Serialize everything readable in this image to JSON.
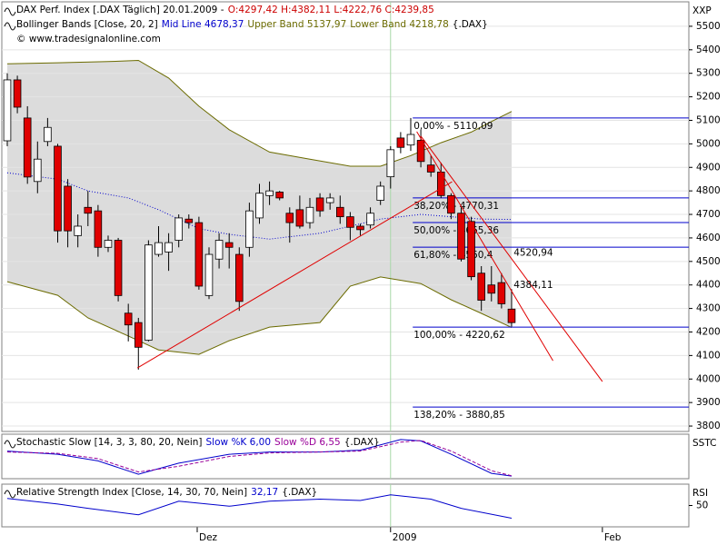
{
  "chart_data": [
    {
      "type": "candlestick",
      "header": [
        [
          {
            "text": "DAX Perf. Index [.DAX Täglich] 20.01.2009 -",
            "color": "#000000"
          },
          {
            "text": "O:4297,42 H:4382,11 L:4222,76 C:4239,85",
            "color": "#cc0000"
          }
        ],
        [
          {
            "text": "Bollinger Bands [Close, 20, 2]",
            "color": "#000000"
          },
          {
            "text": "Mid Line 4678,37",
            "color": "#0000cc"
          },
          {
            "text": "Upper Band 5137,97",
            "color": "#6b6b00"
          },
          {
            "text": "Lower Band 4218,78",
            "color": "#6b6b00"
          },
          {
            "text": "{.DAX}",
            "color": "#000000"
          }
        ],
        [
          {
            "text": "© www.tradesignalonline.com",
            "color": "#000000"
          }
        ]
      ],
      "axis_label": "XXP",
      "x": [
        0,
        1,
        2,
        3,
        4,
        5,
        6,
        7,
        8,
        9,
        10,
        11,
        12,
        13,
        14,
        15,
        16,
        17,
        18,
        19,
        20,
        21,
        22,
        23,
        24,
        25,
        26,
        27,
        28,
        29,
        30,
        31,
        32,
        33,
        34,
        35,
        36,
        37,
        38,
        39,
        40,
        41,
        42,
        43,
        44,
        45,
        46,
        47,
        48,
        49,
        50
      ],
      "open": [
        5013,
        5272,
        5110,
        4840,
        5010,
        4990,
        4820,
        4610,
        4730,
        4715,
        4560,
        4590,
        4280,
        4240,
        4165,
        4530,
        4540,
        4590,
        4680,
        4665,
        4355,
        4510,
        4580,
        4530,
        4560,
        4685,
        4780,
        4795,
        4705,
        4720,
        4665,
        4770,
        4750,
        4730,
        4690,
        4650,
        4655,
        4760,
        4860,
        5025,
        4995,
        5015,
        4910,
        4880,
        4780,
        4705,
        4670,
        4450,
        4400,
        4410,
        4297.42
      ],
      "high": [
        5300,
        5290,
        5160,
        5010,
        5110,
        5000,
        4850,
        4700,
        4800,
        4740,
        4610,
        4600,
        4320,
        4260,
        4590,
        4650,
        4620,
        4700,
        4700,
        4690,
        4560,
        4620,
        4620,
        4560,
        4750,
        4830,
        4840,
        4800,
        4730,
        4780,
        4770,
        4790,
        4790,
        4780,
        4710,
        4660,
        4730,
        4840,
        4990,
        5050,
        5110,
        5060,
        4950,
        4920,
        4790,
        4730,
        4690,
        4480,
        4480,
        4450,
        4382.11
      ],
      "low": [
        4990,
        5130,
        4830,
        4790,
        4990,
        4580,
        4560,
        4560,
        4650,
        4520,
        4540,
        4330,
        4160,
        4040,
        4160,
        4520,
        4460,
        4560,
        4640,
        4380,
        4340,
        4470,
        4470,
        4290,
        4520,
        4660,
        4740,
        4760,
        4580,
        4640,
        4640,
        4690,
        4720,
        4660,
        4590,
        4610,
        4640,
        4740,
        4810,
        4960,
        4970,
        4900,
        4860,
        4770,
        4680,
        4500,
        4420,
        4290,
        4330,
        4300,
        4222.76
      ],
      "close": [
        5272,
        5156,
        4859,
        4935,
        5070,
        4630,
        4630,
        4650,
        4705,
        4560,
        4590,
        4355,
        4230,
        4135,
        4570,
        4580,
        4580,
        4685,
        4665,
        4395,
        4530,
        4590,
        4560,
        4330,
        4715,
        4790,
        4800,
        4770,
        4665,
        4650,
        4730,
        4715,
        4770,
        4690,
        4645,
        4635,
        4705,
        4820,
        4975,
        4985,
        5040,
        4925,
        4880,
        4780,
        4705,
        4510,
        4435,
        4335,
        4365,
        4320,
        4239.85
      ],
      "up_color": "#ffffff",
      "down_color": "#e00000",
      "bands": [
        {
          "name": "Upper Band",
          "color": "#6b6b00",
          "x": [
            0,
            5,
            10,
            13,
            16,
            19,
            22,
            26,
            30,
            34,
            37,
            40,
            43,
            46,
            48,
            50
          ],
          "values": [
            5340,
            5345,
            5350,
            5355,
            5280,
            5160,
            5060,
            4965,
            4935,
            4905,
            4905,
            4950,
            5005,
            5050,
            5095,
            5137.97
          ]
        },
        {
          "name": "Mid Line",
          "color": "#0000cc",
          "x": [
            0,
            5,
            8,
            12,
            15,
            19,
            22,
            26,
            31,
            34,
            37,
            41,
            44,
            47,
            50
          ],
          "values": [
            4877,
            4850,
            4800,
            4770,
            4720,
            4640,
            4615,
            4595,
            4620,
            4650,
            4680,
            4700,
            4690,
            4680,
            4678.37
          ]
        },
        {
          "name": "Lower Band",
          "color": "#6b6b00",
          "x": [
            0,
            5,
            8,
            12,
            15,
            19,
            22,
            26,
            31,
            34,
            37,
            41,
            44,
            47,
            50
          ],
          "values": [
            4414,
            4356,
            4260,
            4183,
            4124,
            4105,
            4163,
            4221,
            4240,
            4395,
            4434,
            4406,
            4337,
            4279,
            4218.78
          ]
        }
      ],
      "band_fill": "#dcdcdc",
      "fib_color": "#0000cc",
      "fib_start_x": 40.2,
      "fib_levels": [
        {
          "value": 5110.09,
          "label": "0,00% - 5110,09"
        },
        {
          "value": 4770.31,
          "label": "38,20% - 4770,31"
        },
        {
          "value": 4665.36,
          "label": "50,00% - 4665,36"
        },
        {
          "value": 4560.4,
          "label": "61,80% - 4560,4"
        },
        {
          "value": 4220.62,
          "label": "100,00% - 4220,62"
        },
        {
          "value": 3880.85,
          "label": "138,20% - 3880,85"
        }
      ],
      "trendline_color": "#e00000",
      "trendlines": [
        {
          "x": [
            12.9,
            44.1
          ],
          "values": [
            4047,
            4839
          ]
        },
        {
          "x": [
            40.6,
            54.1
          ],
          "values": [
            5052,
            4078
          ]
        },
        {
          "x": [
            41,
            59
          ],
          "values": [
            5033,
            3989
          ]
        }
      ],
      "price_labels": [
        {
          "x": 50.2,
          "value": 4520.94,
          "label": "4520,94"
        },
        {
          "x": 50.2,
          "value": 4384.11,
          "label": "4384,11"
        }
      ],
      "xlim": [
        -0.54,
        67.57
      ],
      "ylim": [
        3777,
        5604
      ],
      "yticks": [
        3800,
        3900,
        4000,
        4100,
        4200,
        4300,
        4400,
        4500,
        4600,
        4700,
        4800,
        4900,
        5000,
        5100,
        5200,
        5300,
        5400,
        5500
      ],
      "xticks": [
        {
          "value": 18.83,
          "label": "Dez"
        },
        {
          "value": 38,
          "label": "2009"
        },
        {
          "value": 59,
          "label": "Feb"
        }
      ],
      "vline_x": 38,
      "vline_color": "#a8d8a8",
      "grid": true
    },
    {
      "type": "line",
      "header": [
        [
          {
            "text": "Stochastic Slow [14, 3, 3, 80, 20, Nein]",
            "color": "#000000"
          },
          {
            "text": "Slow %K 6,00",
            "color": "#0000cc"
          },
          {
            "text": "Slow %D 6,55",
            "color": "#990099"
          },
          {
            "text": "{.DAX}",
            "color": "#000000"
          }
        ]
      ],
      "axis_label": "SSTC",
      "ylim": [
        0,
        100
      ],
      "yticks": [],
      "series": [
        {
          "name": "Slow %K",
          "color": "#0000cc",
          "dashed": false,
          "x": [
            0,
            5,
            9,
            13,
            17,
            22,
            26,
            31,
            35,
            39,
            41,
            44,
            48,
            50
          ],
          "values": [
            62,
            55,
            40,
            10,
            35,
            55,
            60,
            60,
            64,
            88,
            85,
            55,
            12,
            6
          ]
        },
        {
          "name": "Slow %D",
          "color": "#990099",
          "dashed": true,
          "x": [
            0,
            5,
            9,
            13,
            17,
            22,
            26,
            31,
            35,
            39,
            41,
            44,
            48,
            50
          ],
          "values": [
            60,
            57,
            45,
            15,
            28,
            50,
            58,
            60,
            62,
            82,
            86,
            62,
            18,
            6.55
          ]
        }
      ]
    },
    {
      "type": "line",
      "header": [
        [
          {
            "text": "Relative Strength Index [Close, 14, 30, 70, Nein]",
            "color": "#000000"
          },
          {
            "text": "32,17",
            "color": "#0000cc"
          },
          {
            "text": "{.DAX}",
            "color": "#000000"
          }
        ]
      ],
      "axis_label": "RSI",
      "ylim": [
        20,
        80
      ],
      "yticks": [
        50
      ],
      "series": [
        {
          "name": "RSI",
          "color": "#0000cc",
          "dashed": false,
          "x": [
            0,
            5,
            8,
            13,
            17,
            22,
            26,
            31,
            35,
            38,
            42,
            45,
            50
          ],
          "values": [
            60,
            52,
            46,
            37,
            56,
            49,
            56,
            59,
            57,
            65,
            59,
            46,
            32.17
          ]
        }
      ]
    }
  ]
}
